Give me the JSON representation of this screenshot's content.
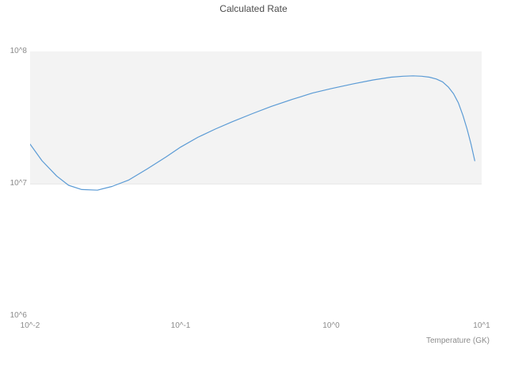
{
  "chart_data": {
    "type": "line",
    "title": "Calculated Rate",
    "xlabel": "Temperature (GK)",
    "ylabel": "",
    "x_scale": "log",
    "y_scale": "log",
    "xlim": [
      0.01,
      10
    ],
    "ylim": [
      1000000,
      100000000
    ],
    "x_tick_labels": [
      "10^-2",
      "10^-1",
      "10^0",
      "10^1"
    ],
    "y_tick_labels": [
      "10^6",
      "10^7",
      "10^8"
    ],
    "grid": "off",
    "legend": "none",
    "line_color": "#5b9bd5",
    "band_edge_color": "#e8e8e8",
    "bg_bands": [
      {
        "from": 10000000,
        "to": 100000000,
        "color": "#f3f3f3"
      }
    ],
    "series": [
      {
        "name": "calculated-rate",
        "x": [
          0.01,
          0.012,
          0.015,
          0.018,
          0.022,
          0.028,
          0.035,
          0.045,
          0.06,
          0.08,
          0.1,
          0.13,
          0.17,
          0.22,
          0.3,
          0.4,
          0.55,
          0.75,
          1.0,
          1.4,
          1.9,
          2.5,
          3.0,
          3.5,
          4.0,
          4.5,
          5.0,
          5.5,
          6.0,
          6.5,
          7.0,
          7.5,
          8.0,
          8.5,
          9.0
        ],
        "y": [
          20000000.0,
          15000000.0,
          11500000.0,
          9800000.0,
          9100000.0,
          9000000.0,
          9600000.0,
          10700000.0,
          13000000.0,
          16000000.0,
          19000000.0,
          22500000.0,
          26000000.0,
          29500000.0,
          34000000.0,
          38500000.0,
          43500000.0,
          48500000.0,
          52500000.0,
          57000000.0,
          61000000.0,
          64000000.0,
          65000000.0,
          65500000.0,
          65000000.0,
          64000000.0,
          62000000.0,
          59000000.0,
          54000000.0,
          48000000.0,
          41000000.0,
          33000000.0,
          26000000.0,
          20000000.0,
          15000000.0
        ]
      }
    ]
  }
}
